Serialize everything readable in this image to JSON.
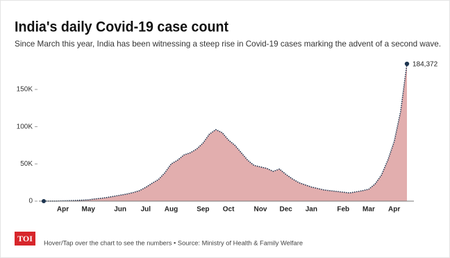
{
  "chart_data": {
    "type": "area",
    "title": "India's daily Covid-19 case count",
    "subtitle": "Since March this year, India has been witnessing a steep rise in Covid-19 cases marking the advent of a second wave.",
    "categories": [
      null,
      null,
      null,
      "Apr",
      null,
      null,
      null,
      "May",
      null,
      null,
      null,
      null,
      "Jun",
      null,
      null,
      null,
      "Jul",
      null,
      null,
      null,
      "Aug",
      null,
      null,
      null,
      null,
      "Sep",
      null,
      null,
      null,
      "Oct",
      null,
      null,
      null,
      null,
      "Nov",
      null,
      null,
      null,
      "Dec",
      null,
      null,
      null,
      "Jan",
      null,
      null,
      null,
      null,
      "Feb",
      null,
      null,
      null,
      "Mar",
      null,
      null,
      null,
      "Apr",
      null,
      null
    ],
    "values": [
      10,
      50,
      100,
      400,
      600,
      900,
      1300,
      1800,
      3000,
      3800,
      5000,
      6500,
      8000,
      9500,
      11500,
      14000,
      18500,
      24000,
      29000,
      38000,
      50000,
      55000,
      62000,
      65000,
      70000,
      78000,
      90000,
      96000,
      92000,
      82000,
      75000,
      65000,
      55000,
      48000,
      46000,
      44000,
      40000,
      43000,
      36000,
      30000,
      25000,
      22000,
      19000,
      17000,
      15000,
      14000,
      13000,
      12000,
      11000,
      12500,
      14000,
      16000,
      23000,
      35000,
      55000,
      80000,
      120000,
      184372
    ],
    "value_labels": [
      null,
      null,
      null,
      null,
      null,
      null,
      null,
      null,
      null,
      null,
      null,
      null,
      null,
      null,
      null,
      null,
      null,
      null,
      null,
      null,
      null,
      null,
      null,
      null,
      null,
      null,
      null,
      null,
      null,
      null,
      null,
      null,
      null,
      null,
      null,
      null,
      null,
      null,
      null,
      null,
      null,
      null,
      null,
      null,
      null,
      null,
      null,
      null,
      null,
      null,
      null,
      null,
      null,
      null,
      null,
      null,
      null,
      "184,372"
    ],
    "color": "#e2aeae",
    "line_color": "#1d3550",
    "ylim": [
      0,
      190000
    ],
    "yticks": [
      0,
      {
        "value": 50000,
        "label": "50K"
      },
      {
        "value": 100000,
        "label": "100K"
      },
      {
        "value": 150000,
        "label": "150K"
      }
    ],
    "grid": false
  },
  "footer": {
    "logo": "TOI",
    "note": "Hover/Tap over the chart to see the numbers • Source: Ministry of Health & Family Welfare"
  }
}
